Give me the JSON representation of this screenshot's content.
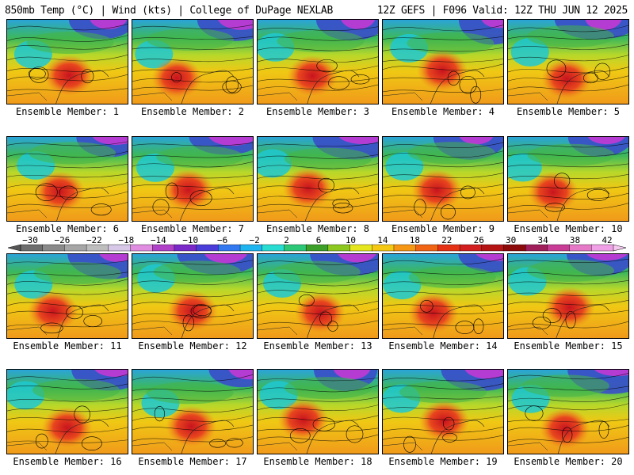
{
  "header": {
    "left_title": "850mb Temp (°C) | Wind (kts) | College of DuPage NEXLAB",
    "right_title": "12Z GEFS | F096 Valid: 12Z THU JUN 12 2025"
  },
  "members": [
    {
      "label": "Ensemble Member: 1"
    },
    {
      "label": "Ensemble Member: 2"
    },
    {
      "label": "Ensemble Member: 3"
    },
    {
      "label": "Ensemble Member: 4"
    },
    {
      "label": "Ensemble Member: 5"
    },
    {
      "label": "Ensemble Member: 6"
    },
    {
      "label": "Ensemble Member: 7"
    },
    {
      "label": "Ensemble Member: 8"
    },
    {
      "label": "Ensemble Member: 9"
    },
    {
      "label": "Ensemble Member: 10"
    },
    {
      "label": "Ensemble Member: 11"
    },
    {
      "label": "Ensemble Member: 12"
    },
    {
      "label": "Ensemble Member: 13"
    },
    {
      "label": "Ensemble Member: 14"
    },
    {
      "label": "Ensemble Member: 15"
    },
    {
      "label": "Ensemble Member: 16"
    },
    {
      "label": "Ensemble Member: 17"
    },
    {
      "label": "Ensemble Member: 18"
    },
    {
      "label": "Ensemble Member: 19"
    },
    {
      "label": "Ensemble Member: 20"
    }
  ],
  "colorbar": {
    "tick_labels": [
      "−30",
      "−26",
      "−22",
      "−18",
      "−14",
      "−10",
      "−6",
      "−2",
      "2",
      "6",
      "10",
      "14",
      "18",
      "22",
      "26",
      "30",
      "34",
      "38",
      "42"
    ],
    "colors": [
      "#6e6e6e",
      "#8a8a8a",
      "#a6a6a6",
      "#bebebe",
      "#d6c8e6",
      "#e08ce0",
      "#b040c8",
      "#7a28c8",
      "#4a3cd8",
      "#3278f0",
      "#1eb4f0",
      "#28dcd2",
      "#2cc878",
      "#3ca028",
      "#8cc820",
      "#e6e61e",
      "#f5c814",
      "#f59614",
      "#f06414",
      "#e63214",
      "#d21e1e",
      "#b41414",
      "#8c0a0a",
      "#a01e5a",
      "#c83c96",
      "#e678c8",
      "#f0a0e6"
    ]
  }
}
